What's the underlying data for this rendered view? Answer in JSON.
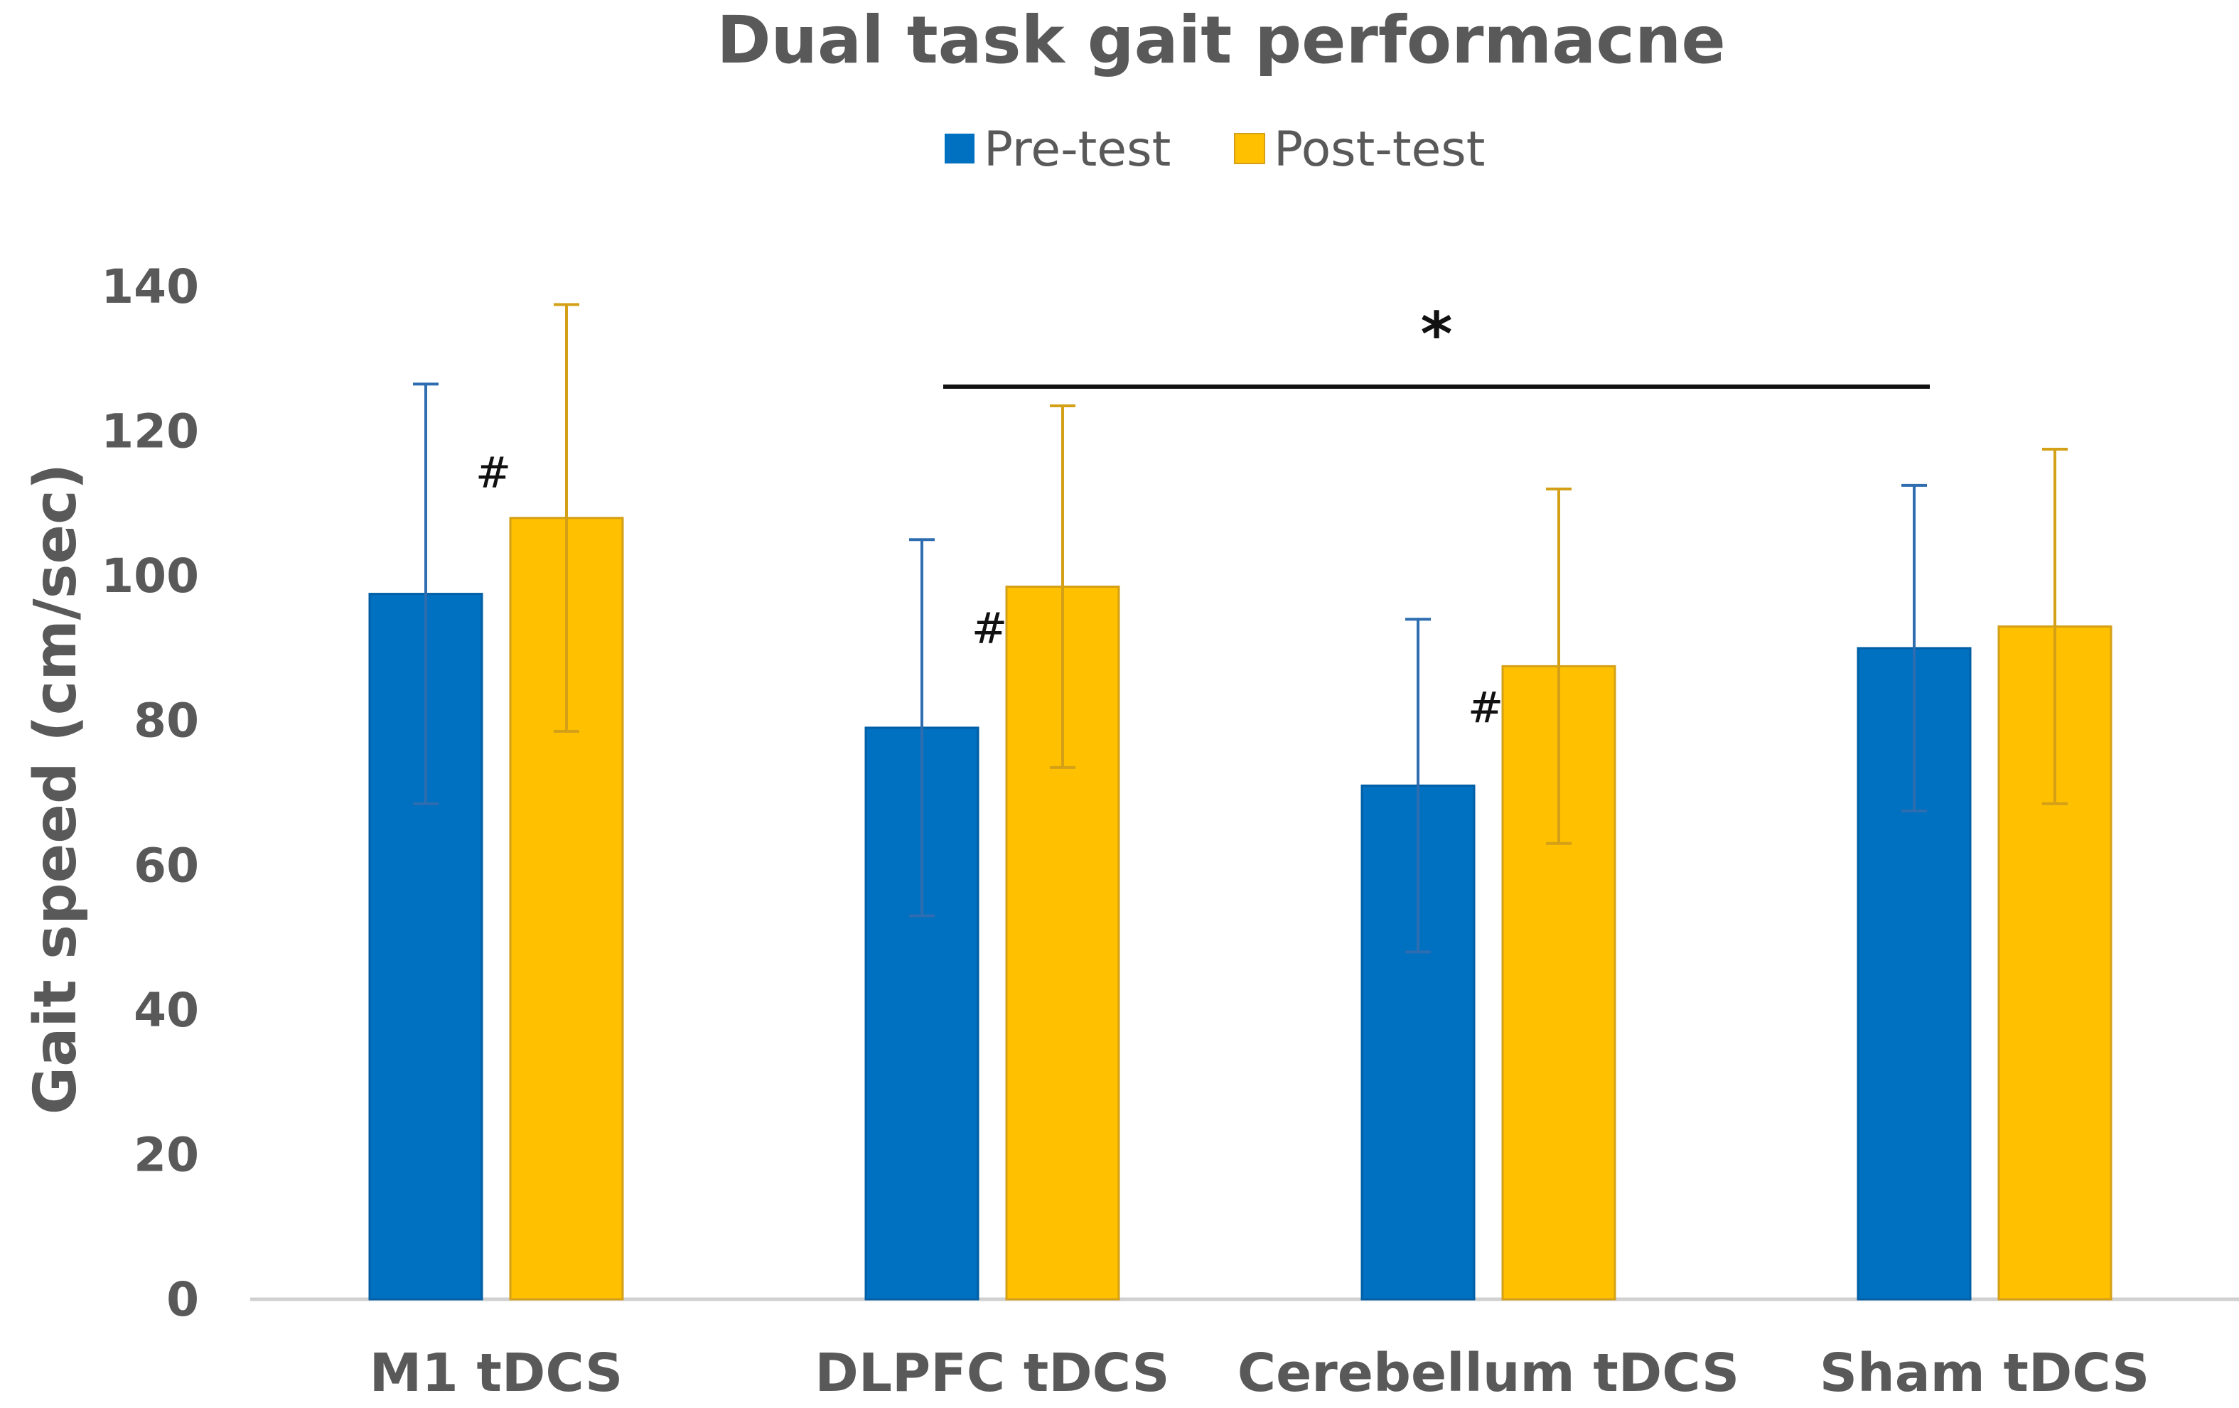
{
  "chart_data": {
    "type": "bar",
    "title": "Dual task gait performacne",
    "xlabel": "",
    "ylabel": "Gait speed (cm/sec)",
    "ylim": [
      0,
      140
    ],
    "yticks": [
      "0",
      "20",
      "40",
      "60",
      "80",
      "100",
      "120",
      "140"
    ],
    "categories": [
      "M1 tDCS",
      "DLPFC  tDCS",
      "Cerebellum tDCS",
      "Sham tDCS"
    ],
    "series": [
      {
        "name": "Pre-test",
        "color": "#0070C0",
        "values": [
          97.5,
          79,
          71,
          90
        ],
        "errors": [
          29,
          26,
          23,
          22.5
        ]
      },
      {
        "name": "Post-test",
        "color": "#FFC000",
        "errors_color": "#D4A017",
        "values": [
          108,
          98.5,
          87.5,
          93
        ],
        "errors": [
          29.5,
          25,
          24.5,
          24.5
        ]
      }
    ],
    "legend": "top-center",
    "grid": false,
    "annotations": {
      "hash_symbol": "#",
      "hash_categories": [
        0,
        1,
        2
      ],
      "significance_symbol": "*",
      "significance_from": 1,
      "significance_to": 3
    }
  }
}
